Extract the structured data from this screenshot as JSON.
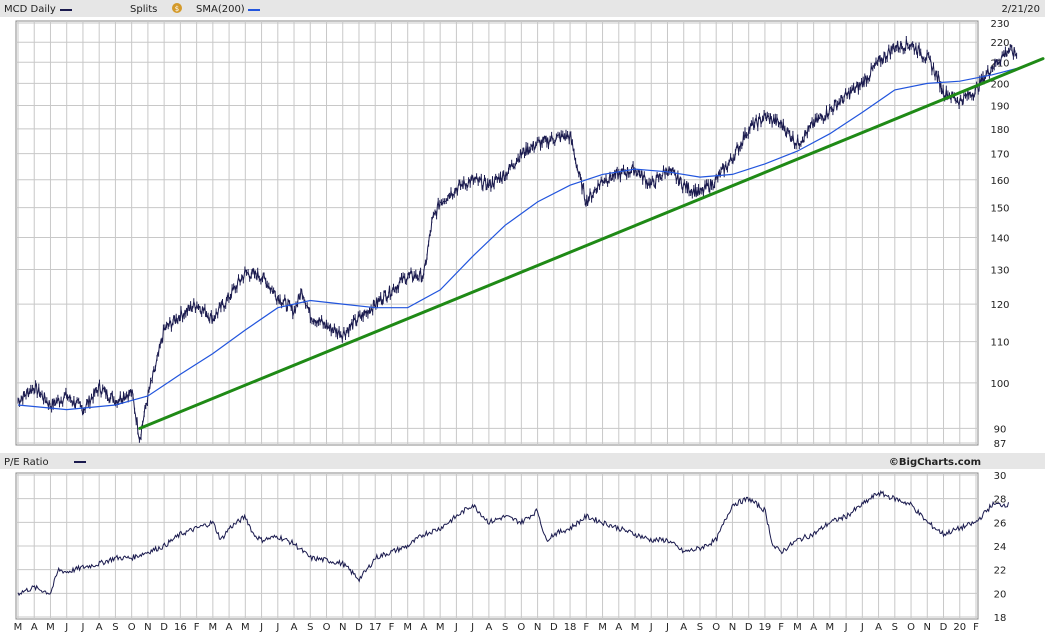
{
  "header": {
    "symbol_label": "MCD Daily",
    "splits_label": "Splits",
    "splits_badge": "$",
    "sma_label": "SMA(200)",
    "date_label": "2/21/20"
  },
  "pe_panel": {
    "label": "P/E Ratio",
    "brand": "©BigCharts.com"
  },
  "colors": {
    "price": "#1a1a4e",
    "sma": "#2255dd",
    "trendline": "#1f8a16",
    "grid": "#c8c8c8",
    "panel_header_bg": "#e6e6e6",
    "splits_badge": "#d49a2a"
  },
  "chart_data": [
    {
      "type": "line",
      "title": "MCD Daily",
      "scale": "log",
      "ylim": [
        87,
        230
      ],
      "y_ticks": [
        87,
        90,
        100,
        110,
        120,
        130,
        140,
        150,
        160,
        170,
        180,
        190,
        200,
        210,
        220,
        230
      ],
      "grid": true,
      "x_ticks": [
        "M",
        "A",
        "M",
        "J",
        "J",
        "A",
        "S",
        "O",
        "N",
        "D",
        "16",
        "F",
        "M",
        "A",
        "M",
        "J",
        "J",
        "A",
        "S",
        "O",
        "N",
        "D",
        "17",
        "F",
        "M",
        "A",
        "M",
        "J",
        "J",
        "A",
        "S",
        "O",
        "N",
        "D",
        "18",
        "F",
        "M",
        "A",
        "M",
        "J",
        "J",
        "A",
        "S",
        "O",
        "N",
        "D",
        "19",
        "F",
        "M",
        "A",
        "M",
        "J",
        "J",
        "A",
        "S",
        "O",
        "N",
        "D",
        "20",
        "F"
      ],
      "series": [
        {
          "name": "MCD Daily",
          "kind": "price",
          "points": [
            [
              0,
              96
            ],
            [
              1,
              99
            ],
            [
              2,
              95
            ],
            [
              3,
              97
            ],
            [
              4,
              94
            ],
            [
              5,
              99
            ],
            [
              6,
              96
            ],
            [
              7,
              98
            ],
            [
              7.5,
              88
            ],
            [
              8,
              97
            ],
            [
              8.5,
              104
            ],
            [
              9,
              113
            ],
            [
              10,
              117
            ],
            [
              11,
              120
            ],
            [
              12,
              116
            ],
            [
              13,
              122
            ],
            [
              14,
              129
            ],
            [
              15,
              128
            ],
            [
              16,
              122
            ],
            [
              17,
              118
            ],
            [
              17.5,
              124
            ],
            [
              18,
              117
            ],
            [
              19,
              114
            ],
            [
              20,
              112
            ],
            [
              21,
              116
            ],
            [
              22,
              120
            ],
            [
              23,
              124
            ],
            [
              24,
              128
            ],
            [
              25,
              128
            ],
            [
              25.5,
              145
            ],
            [
              26,
              152
            ],
            [
              27,
              157
            ],
            [
              28,
              160
            ],
            [
              29,
              158
            ],
            [
              30,
              162
            ],
            [
              31,
              170
            ],
            [
              32,
              174
            ],
            [
              33,
              176
            ],
            [
              34,
              177
            ],
            [
              34.5,
              163
            ],
            [
              35,
              152
            ],
            [
              36,
              160
            ],
            [
              37,
              162
            ],
            [
              38,
              164
            ],
            [
              39,
              158
            ],
            [
              40,
              164
            ],
            [
              41,
              158
            ],
            [
              42,
              155
            ],
            [
              43,
              160
            ],
            [
              44,
              168
            ],
            [
              45,
              180
            ],
            [
              46,
              185
            ],
            [
              47,
              182
            ],
            [
              48,
              174
            ],
            [
              49,
              182
            ],
            [
              50,
              188
            ],
            [
              51,
              194
            ],
            [
              52,
              200
            ],
            [
              53,
              210
            ],
            [
              54,
              218
            ],
            [
              55,
              219
            ],
            [
              56,
              212
            ],
            [
              56.5,
              205
            ],
            [
              57,
              196
            ],
            [
              58,
              192
            ],
            [
              59,
              197
            ],
            [
              60,
              208
            ],
            [
              61,
              216
            ],
            [
              61.5,
              214
            ]
          ]
        },
        {
          "name": "SMA(200)",
          "kind": "sma",
          "points": [
            [
              0,
              95
            ],
            [
              3,
              94
            ],
            [
              6,
              95
            ],
            [
              8,
              97
            ],
            [
              10,
              102
            ],
            [
              12,
              107
            ],
            [
              14,
              113
            ],
            [
              16,
              119
            ],
            [
              18,
              121
            ],
            [
              20,
              120
            ],
            [
              22,
              119
            ],
            [
              24,
              119
            ],
            [
              26,
              124
            ],
            [
              28,
              134
            ],
            [
              30,
              144
            ],
            [
              32,
              152
            ],
            [
              34,
              158
            ],
            [
              36,
              162
            ],
            [
              38,
              164
            ],
            [
              40,
              163
            ],
            [
              42,
              161
            ],
            [
              44,
              162
            ],
            [
              46,
              166
            ],
            [
              48,
              171
            ],
            [
              50,
              178
            ],
            [
              52,
              187
            ],
            [
              54,
              197
            ],
            [
              56,
              200
            ],
            [
              58,
              201
            ],
            [
              60,
              204
            ],
            [
              61.5,
              207
            ]
          ]
        },
        {
          "name": "trendline",
          "kind": "trendline",
          "points": [
            [
              7.5,
              90
            ],
            [
              63.8,
              214
            ]
          ]
        }
      ]
    },
    {
      "type": "line",
      "title": "P/E Ratio",
      "ylim": [
        18,
        30
      ],
      "y_ticks": [
        18,
        20,
        22,
        24,
        26,
        28,
        30
      ],
      "grid": true,
      "series": [
        {
          "name": "P/E Ratio",
          "points": [
            [
              0,
              20
            ],
            [
              1,
              20.5
            ],
            [
              2,
              20
            ],
            [
              2.5,
              22
            ],
            [
              3,
              21.8
            ],
            [
              4,
              22.2
            ],
            [
              5,
              22.5
            ],
            [
              6,
              23
            ],
            [
              7,
              23
            ],
            [
              8,
              23.5
            ],
            [
              9,
              24
            ],
            [
              10,
              25
            ],
            [
              11,
              25.5
            ],
            [
              12,
              26
            ],
            [
              12.5,
              24.5
            ],
            [
              13,
              25.5
            ],
            [
              14,
              26.5
            ],
            [
              14.5,
              25
            ],
            [
              15,
              24.5
            ],
            [
              16,
              24.8
            ],
            [
              17,
              24.2
            ],
            [
              18,
              23
            ],
            [
              19,
              22.8
            ],
            [
              20,
              22.5
            ],
            [
              21,
              21.2
            ],
            [
              21.5,
              22
            ],
            [
              22,
              23
            ],
            [
              23,
              23.5
            ],
            [
              24,
              24
            ],
            [
              25,
              25
            ],
            [
              26,
              25.5
            ],
            [
              27,
              26.5
            ],
            [
              28,
              27.5
            ],
            [
              29,
              26
            ],
            [
              30,
              26.5
            ],
            [
              31,
              26
            ],
            [
              32,
              27
            ],
            [
              32.5,
              24.5
            ],
            [
              33,
              25
            ],
            [
              34,
              25.5
            ],
            [
              35,
              26.5
            ],
            [
              36,
              26
            ],
            [
              37,
              25.5
            ],
            [
              38,
              25
            ],
            [
              39,
              24.5
            ],
            [
              40,
              24.5
            ],
            [
              41,
              23.5
            ],
            [
              42,
              23.8
            ],
            [
              43,
              24.5
            ],
            [
              44,
              27.5
            ],
            [
              45,
              28
            ],
            [
              46,
              27
            ],
            [
              46.5,
              24
            ],
            [
              47,
              23.5
            ],
            [
              48,
              24.5
            ],
            [
              49,
              25
            ],
            [
              50,
              26
            ],
            [
              51,
              26.5
            ],
            [
              52,
              27.5
            ],
            [
              53,
              28.5
            ],
            [
              54,
              28
            ],
            [
              55,
              27.5
            ],
            [
              56,
              26
            ],
            [
              56.5,
              25.5
            ],
            [
              57,
              25
            ],
            [
              58,
              25.5
            ],
            [
              59,
              26
            ],
            [
              60,
              27.5
            ],
            [
              61,
              27.5
            ]
          ]
        }
      ]
    }
  ]
}
